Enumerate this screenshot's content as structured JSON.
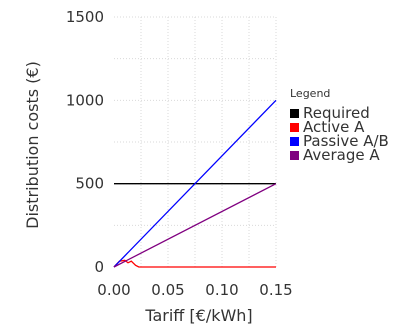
{
  "chart_data": {
    "type": "line",
    "title": "",
    "xlabel": "Tariff [€/kWh]",
    "ylabel": "Distribution costs (€)",
    "xlim": [
      0,
      0.15
    ],
    "ylim": [
      0,
      1500
    ],
    "x_ticks": [
      0,
      0.05,
      0.1,
      0.15
    ],
    "x_tick_labels": [
      "0.00",
      "0.05",
      "0.10",
      "0.15"
    ],
    "y_ticks": [
      0,
      500,
      1000,
      1500
    ],
    "y_tick_labels": [
      "0",
      "500",
      "1000",
      "1500"
    ],
    "grid": true,
    "legend": {
      "title": "Legend",
      "placement": "right"
    },
    "series": [
      {
        "name": "Required",
        "color": "#000000",
        "x": [
          0,
          0.15
        ],
        "y": [
          500,
          500
        ]
      },
      {
        "name": "Active A",
        "color": "#ff0000",
        "x": [
          0,
          0.005,
          0.01,
          0.013,
          0.016,
          0.02,
          0.023,
          0.15
        ],
        "y": [
          0,
          35,
          40,
          25,
          35,
          10,
          0,
          0
        ]
      },
      {
        "name": "Passive A/B",
        "color": "#0000ff",
        "x": [
          0,
          0.15
        ],
        "y": [
          0,
          1000
        ]
      },
      {
        "name": "Average A",
        "color": "#800080",
        "x": [
          0,
          0.15
        ],
        "y": [
          0,
          500
        ]
      }
    ]
  }
}
